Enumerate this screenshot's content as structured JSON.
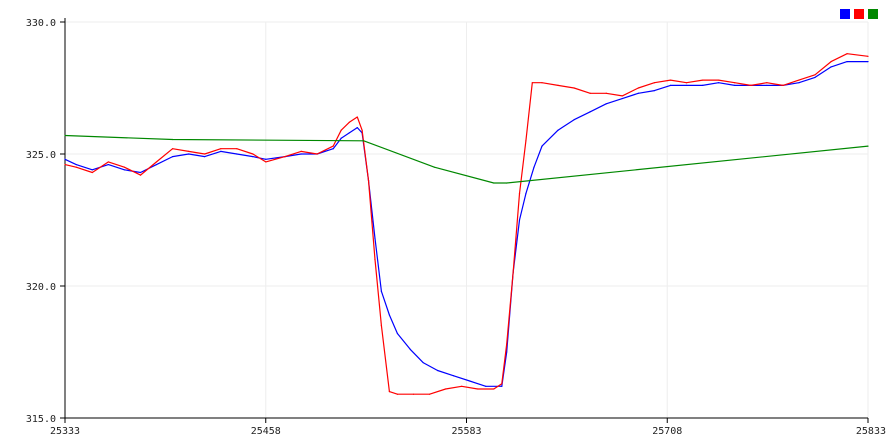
{
  "chart_data": {
    "type": "line",
    "title": "",
    "xlabel": "",
    "ylabel": "",
    "xlim": [
      25333,
      25833
    ],
    "ylim": [
      315,
      330
    ],
    "x_ticks": [
      25333,
      25458,
      25583,
      25708,
      25833
    ],
    "x_tick_labels": [
      "25333",
      "25458",
      "25583",
      "25708",
      "25833"
    ],
    "y_ticks": [
      315,
      320,
      325,
      330
    ],
    "y_tick_labels": [
      "315.0",
      "320.0",
      "325.0",
      "330.0"
    ],
    "grid": true,
    "legend": "top-right",
    "series": [
      {
        "color": "#0000ff",
        "points": [
          [
            25333,
            324.8
          ],
          [
            25340,
            324.6
          ],
          [
            25350,
            324.4
          ],
          [
            25360,
            324.6
          ],
          [
            25370,
            324.4
          ],
          [
            25380,
            324.3
          ],
          [
            25390,
            324.6
          ],
          [
            25400,
            324.9
          ],
          [
            25410,
            325.0
          ],
          [
            25420,
            324.9
          ],
          [
            25430,
            325.1
          ],
          [
            25440,
            325.0
          ],
          [
            25450,
            324.9
          ],
          [
            25458,
            324.8
          ],
          [
            25470,
            324.9
          ],
          [
            25480,
            325.0
          ],
          [
            25490,
            325.0
          ],
          [
            25500,
            325.2
          ],
          [
            25505,
            325.6
          ],
          [
            25510,
            325.8
          ],
          [
            25515,
            326.0
          ],
          [
            25518,
            325.8
          ],
          [
            25522,
            324.0
          ],
          [
            25526,
            321.8
          ],
          [
            25530,
            319.8
          ],
          [
            25535,
            318.9
          ],
          [
            25540,
            318.2
          ],
          [
            25548,
            317.6
          ],
          [
            25556,
            317.1
          ],
          [
            25565,
            316.8
          ],
          [
            25575,
            316.6
          ],
          [
            25585,
            316.4
          ],
          [
            25595,
            316.2
          ],
          [
            25605,
            316.2
          ],
          [
            25608,
            317.5
          ],
          [
            25612,
            320.5
          ],
          [
            25616,
            322.5
          ],
          [
            25620,
            323.5
          ],
          [
            25625,
            324.5
          ],
          [
            25630,
            325.3
          ],
          [
            25640,
            325.9
          ],
          [
            25650,
            326.3
          ],
          [
            25660,
            326.6
          ],
          [
            25670,
            326.9
          ],
          [
            25680,
            327.1
          ],
          [
            25690,
            327.3
          ],
          [
            25700,
            327.4
          ],
          [
            25710,
            327.6
          ],
          [
            25720,
            327.6
          ],
          [
            25730,
            327.6
          ],
          [
            25740,
            327.7
          ],
          [
            25750,
            327.6
          ],
          [
            25760,
            327.6
          ],
          [
            25770,
            327.6
          ],
          [
            25780,
            327.6
          ],
          [
            25790,
            327.7
          ],
          [
            25800,
            327.9
          ],
          [
            25810,
            328.3
          ],
          [
            25820,
            328.5
          ],
          [
            25833,
            328.5
          ]
        ]
      },
      {
        "color": "#ff0000",
        "points": [
          [
            25333,
            324.6
          ],
          [
            25340,
            324.5
          ],
          [
            25350,
            324.3
          ],
          [
            25360,
            324.7
          ],
          [
            25370,
            324.5
          ],
          [
            25380,
            324.2
          ],
          [
            25390,
            324.7
          ],
          [
            25400,
            325.2
          ],
          [
            25410,
            325.1
          ],
          [
            25420,
            325.0
          ],
          [
            25430,
            325.2
          ],
          [
            25440,
            325.2
          ],
          [
            25450,
            325.0
          ],
          [
            25458,
            324.7
          ],
          [
            25470,
            324.9
          ],
          [
            25480,
            325.1
          ],
          [
            25490,
            325.0
          ],
          [
            25500,
            325.3
          ],
          [
            25505,
            325.9
          ],
          [
            25510,
            326.2
          ],
          [
            25515,
            326.4
          ],
          [
            25518,
            325.9
          ],
          [
            25522,
            324.0
          ],
          [
            25526,
            321.0
          ],
          [
            25530,
            318.5
          ],
          [
            25535,
            316.0
          ],
          [
            25540,
            315.9
          ],
          [
            25550,
            315.9
          ],
          [
            25560,
            315.9
          ],
          [
            25570,
            316.1
          ],
          [
            25580,
            316.2
          ],
          [
            25590,
            316.1
          ],
          [
            25600,
            316.1
          ],
          [
            25605,
            316.3
          ],
          [
            25608,
            317.8
          ],
          [
            25612,
            320.5
          ],
          [
            25616,
            323.5
          ],
          [
            25620,
            325.5
          ],
          [
            25624,
            327.7
          ],
          [
            25630,
            327.7
          ],
          [
            25640,
            327.6
          ],
          [
            25650,
            327.5
          ],
          [
            25660,
            327.3
          ],
          [
            25670,
            327.3
          ],
          [
            25680,
            327.2
          ],
          [
            25690,
            327.5
          ],
          [
            25700,
            327.7
          ],
          [
            25710,
            327.8
          ],
          [
            25720,
            327.7
          ],
          [
            25730,
            327.8
          ],
          [
            25740,
            327.8
          ],
          [
            25750,
            327.7
          ],
          [
            25760,
            327.6
          ],
          [
            25770,
            327.7
          ],
          [
            25780,
            327.6
          ],
          [
            25790,
            327.8
          ],
          [
            25800,
            328.0
          ],
          [
            25810,
            328.5
          ],
          [
            25820,
            328.8
          ],
          [
            25833,
            328.7
          ]
        ]
      },
      {
        "color": "#008800",
        "points": [
          [
            25333,
            325.7
          ],
          [
            25400,
            325.55
          ],
          [
            25519,
            325.5
          ],
          [
            25563,
            324.5
          ],
          [
            25600,
            323.9
          ],
          [
            25608,
            323.9
          ],
          [
            25833,
            325.3
          ]
        ]
      }
    ]
  },
  "legend_colors": [
    "#0000ff",
    "#ff0000",
    "#008800"
  ]
}
